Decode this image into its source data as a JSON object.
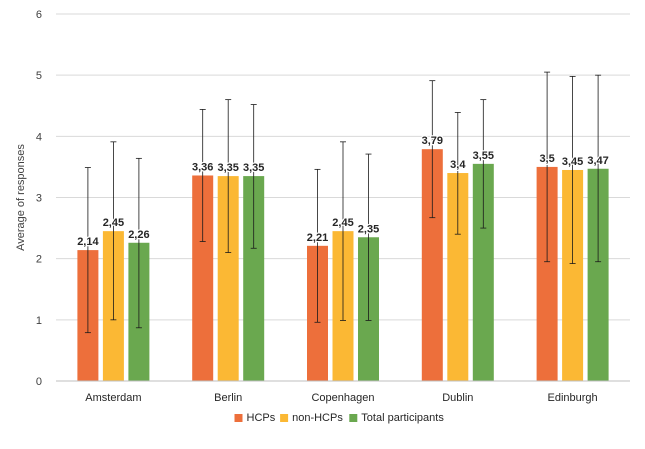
{
  "chart_data": {
    "type": "bar",
    "title": "",
    "xlabel": "",
    "ylabel": "Average of responses",
    "ylim": [
      0,
      6
    ],
    "yticks": [
      0,
      1,
      2,
      3,
      4,
      5,
      6
    ],
    "grid": true,
    "legend_position": "bottom",
    "categories": [
      "Amsterdam",
      "Berlin",
      "Copenhagen",
      "Dublin",
      "Edinburgh"
    ],
    "series": [
      {
        "name": "HCPs",
        "color": "#ED6F3B",
        "values": [
          2.14,
          3.36,
          2.21,
          3.79,
          3.5
        ],
        "labels": [
          "2,14",
          "3,36",
          "2,21",
          "3,79",
          "3,5"
        ],
        "err_low": [
          0.79,
          2.28,
          0.96,
          2.67,
          1.95
        ],
        "err_high": [
          3.49,
          4.44,
          3.46,
          4.91,
          5.05
        ]
      },
      {
        "name": "non-HCPs",
        "color": "#FBB834",
        "values": [
          2.45,
          3.35,
          2.45,
          3.4,
          3.45
        ],
        "labels": [
          "2,45",
          "3,35",
          "2,45",
          "3,4",
          "3,45"
        ],
        "err_low": [
          1.0,
          2.1,
          0.99,
          2.4,
          1.92
        ],
        "err_high": [
          3.91,
          4.6,
          3.91,
          4.39,
          4.98
        ]
      },
      {
        "name": "Total participants",
        "color": "#6AA84F",
        "values": [
          2.26,
          3.35,
          2.35,
          3.55,
          3.47
        ],
        "labels": [
          "2,26",
          "3,35",
          "2,35",
          "3,55",
          "3,47"
        ],
        "err_low": [
          0.87,
          2.17,
          0.99,
          2.5,
          1.95
        ],
        "err_high": [
          3.64,
          4.52,
          3.71,
          4.6,
          5.0
        ]
      }
    ]
  }
}
